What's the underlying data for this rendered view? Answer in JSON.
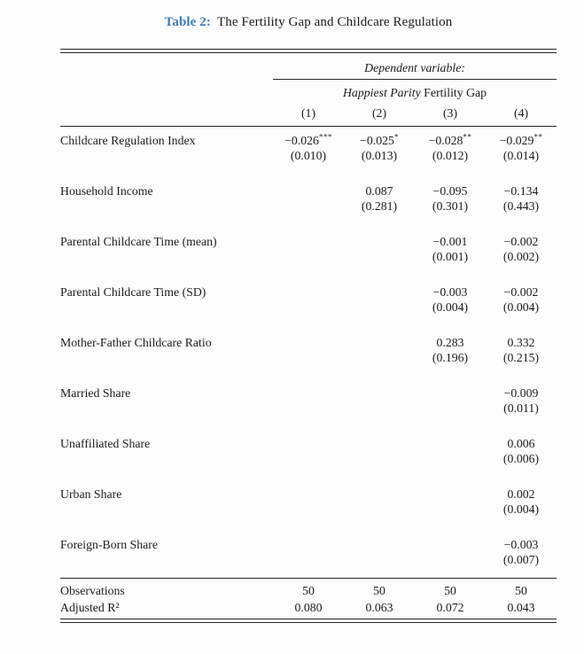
{
  "accent_color": "#3e7ab6",
  "title": {
    "label": "Table 2:",
    "text": "The Fertility Gap and Childcare Regulation"
  },
  "header": {
    "dependent_label": "Dependent variable:",
    "dv_italic": "Happiest Parity",
    "dv_rest": " Fertility Gap",
    "columns": [
      "(1)",
      "(2)",
      "(3)",
      "(4)"
    ]
  },
  "table": {
    "rows": [
      {
        "label": "Childcare Regulation Index",
        "coefs": [
          "−0.026***",
          "−0.025*",
          "−0.028**",
          "−0.029**"
        ],
        "ses": [
          "(0.010)",
          "(0.013)",
          "(0.012)",
          "(0.014)"
        ]
      },
      {
        "label": "Household Income",
        "coefs": [
          "",
          "0.087",
          "−0.095",
          "−0.134"
        ],
        "ses": [
          "",
          "(0.281)",
          "(0.301)",
          "(0.443)"
        ]
      },
      {
        "label": "Parental Childcare Time (mean)",
        "coefs": [
          "",
          "",
          "−0.001",
          "−0.002"
        ],
        "ses": [
          "",
          "",
          "(0.001)",
          "(0.002)"
        ]
      },
      {
        "label": "Parental Childcare Time (SD)",
        "coefs": [
          "",
          "",
          "−0.003",
          "−0.002"
        ],
        "ses": [
          "",
          "",
          "(0.004)",
          "(0.004)"
        ]
      },
      {
        "label": "Mother-Father Childcare Ratio",
        "coefs": [
          "",
          "",
          "0.283",
          "0.332"
        ],
        "ses": [
          "",
          "",
          "(0.196)",
          "(0.215)"
        ]
      },
      {
        "label": "Married Share",
        "coefs": [
          "",
          "",
          "",
          "−0.009"
        ],
        "ses": [
          "",
          "",
          "",
          "(0.011)"
        ]
      },
      {
        "label": "Unaffiliated Share",
        "coefs": [
          "",
          "",
          "",
          "0.006"
        ],
        "ses": [
          "",
          "",
          "",
          "(0.006)"
        ]
      },
      {
        "label": "Urban Share",
        "coefs": [
          "",
          "",
          "",
          "0.002"
        ],
        "ses": [
          "",
          "",
          "",
          "(0.004)"
        ]
      },
      {
        "label": "Foreign-Born Share",
        "coefs": [
          "",
          "",
          "",
          "−0.003"
        ],
        "ses": [
          "",
          "",
          "",
          "(0.007)"
        ]
      }
    ],
    "stats": [
      {
        "label": "Observations",
        "values": [
          "50",
          "50",
          "50",
          "50"
        ]
      },
      {
        "label": "Adjusted R²",
        "values": [
          "0.080",
          "0.063",
          "0.072",
          "0.043"
        ]
      }
    ]
  }
}
